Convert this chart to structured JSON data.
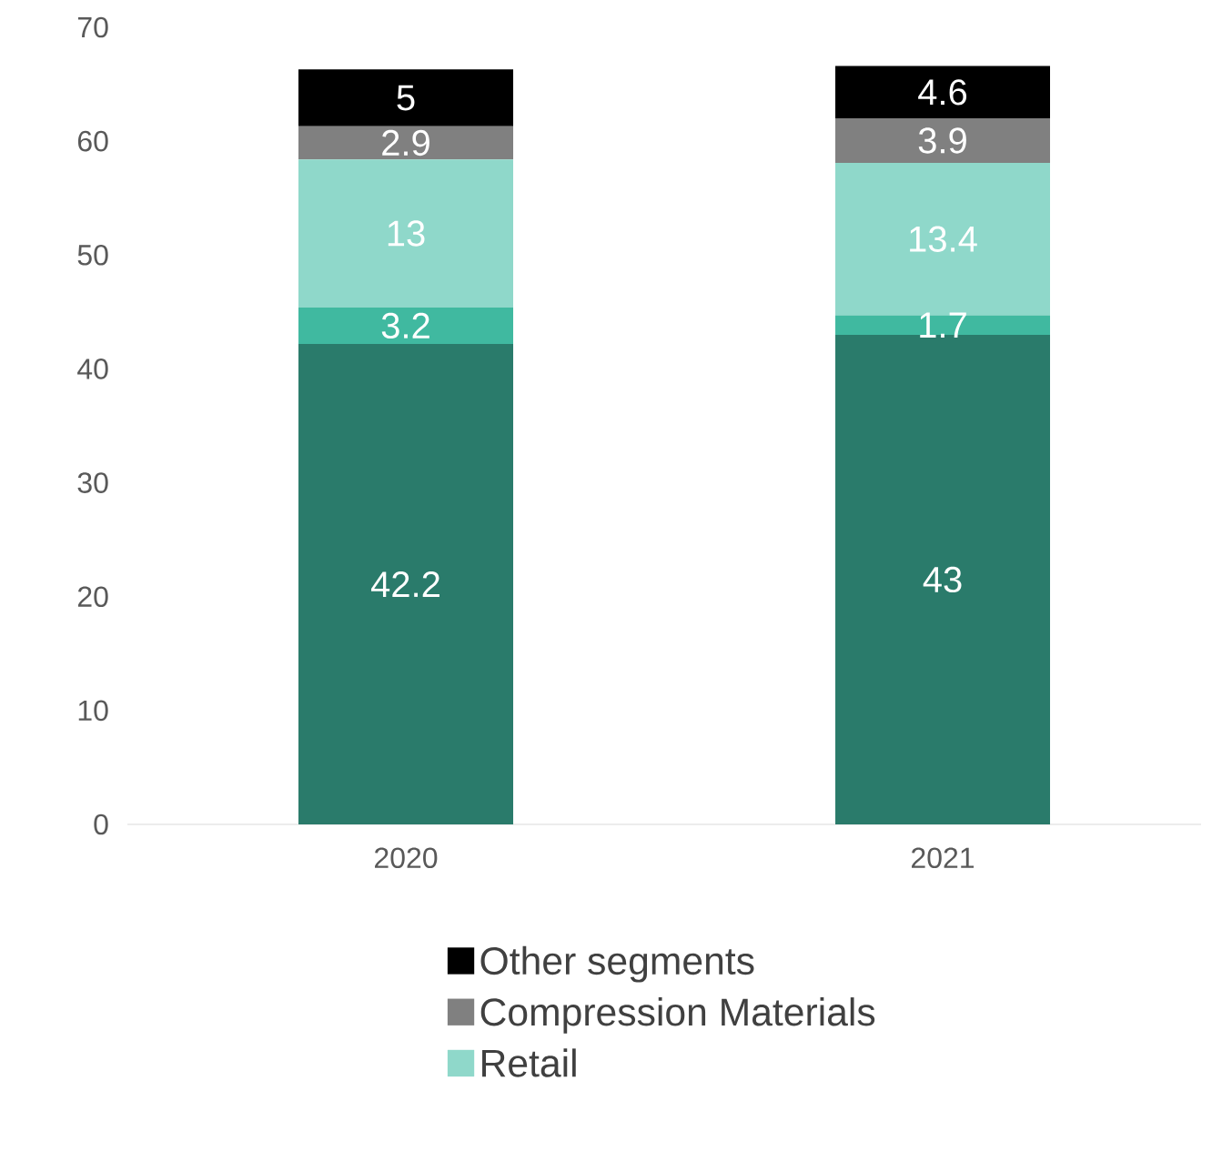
{
  "chart_data": {
    "type": "bar",
    "stacked": true,
    "categories": [
      "2020",
      "2021"
    ],
    "series": [
      {
        "color": "#2a7b6b",
        "values": [
          42.2,
          43
        ]
      },
      {
        "color": "#40b9a0",
        "values": [
          3.2,
          1.7
        ]
      },
      {
        "name": "Retail",
        "color": "#8fd8ca",
        "values": [
          13,
          13.4
        ]
      },
      {
        "name": "Compression Materials",
        "color": "#808080",
        "values": [
          2.9,
          3.9
        ]
      },
      {
        "name": "Other segments",
        "color": "#000000",
        "values": [
          5,
          4.6
        ]
      }
    ],
    "ylim": [
      0,
      70
    ],
    "yticks": [
      0,
      10,
      20,
      30,
      40,
      50,
      60,
      70
    ],
    "data_labels": true,
    "legend": "bottom",
    "grid": false
  }
}
